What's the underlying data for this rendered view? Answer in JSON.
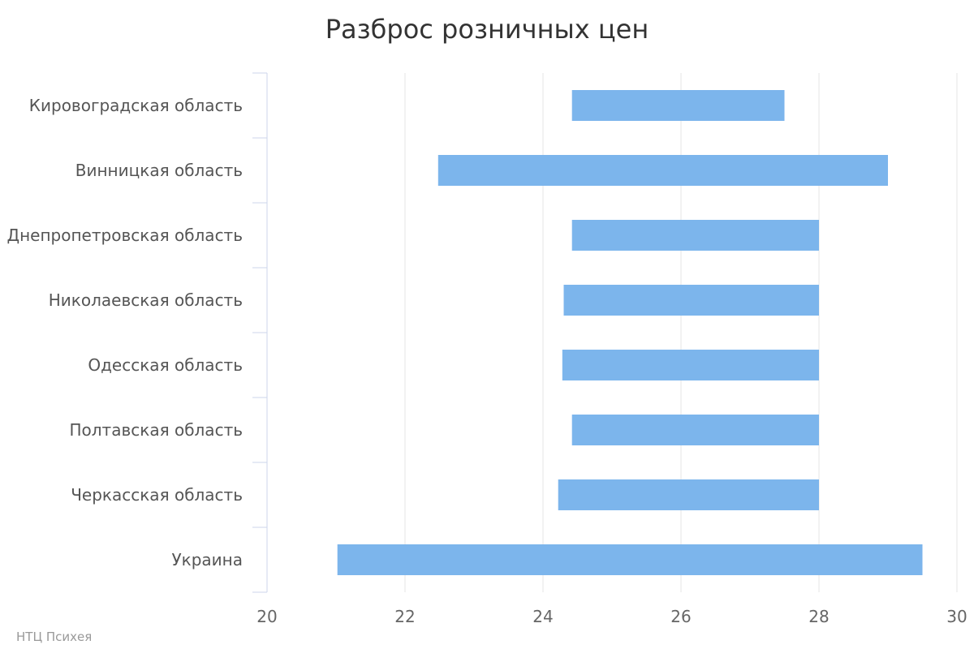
{
  "credit": "НТЦ Психея",
  "colors": {
    "bar": "#7cb5ec",
    "grid": "#e6e6e6",
    "axis": "#ccd6eb"
  },
  "chart_data": {
    "type": "bar",
    "orientation": "horizontal",
    "title": "Разброс розничных цен",
    "xlabel": "",
    "ylabel": "",
    "grid": true,
    "legend": "none",
    "xlim": [
      20,
      30
    ],
    "xticks": [
      20,
      22,
      24,
      26,
      28,
      30
    ],
    "categories": [
      "Кировоградская область",
      "Винницкая область",
      "Днепропетровская область",
      "Николаевская область",
      "Одесская область",
      "Полтавская область",
      "Черкасская область",
      "Украина"
    ],
    "series": [
      {
        "low": [
          24.42,
          22.48,
          24.42,
          24.3,
          24.28,
          24.42,
          24.22,
          21.02
        ],
        "high": [
          27.5,
          29.0,
          28.0,
          28.0,
          28.0,
          28.0,
          28.0,
          29.5
        ]
      }
    ]
  }
}
